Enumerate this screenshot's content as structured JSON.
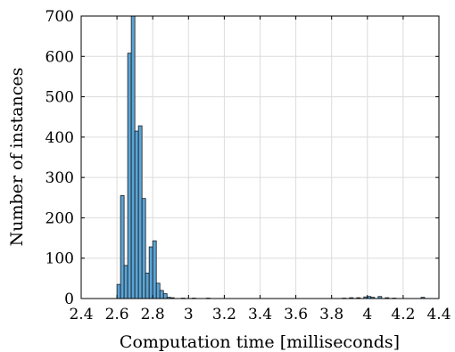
{
  "chart_data": {
    "type": "bar",
    "title": "",
    "xlabel": "Computation time [milliseconds]",
    "ylabel": "Number of instances",
    "xlim": [
      2.4,
      4.4
    ],
    "ylim": [
      0,
      700
    ],
    "grid": true,
    "bin_width": 0.02,
    "x_ticks": [
      "2.4",
      "2.6",
      "2.8",
      "3",
      "3.2",
      "3.4",
      "3.6",
      "3.8",
      "4",
      "4.2",
      "4.4"
    ],
    "y_ticks": [
      "0",
      "100",
      "200",
      "300",
      "400",
      "500",
      "600",
      "700"
    ],
    "bar_color": "#5aa4d6",
    "bins": [
      {
        "x": 2.6,
        "count": 35
      },
      {
        "x": 2.62,
        "count": 255
      },
      {
        "x": 2.64,
        "count": 82
      },
      {
        "x": 2.66,
        "count": 608
      },
      {
        "x": 2.68,
        "count": 700
      },
      {
        "x": 2.7,
        "count": 415
      },
      {
        "x": 2.72,
        "count": 428
      },
      {
        "x": 2.74,
        "count": 248
      },
      {
        "x": 2.76,
        "count": 63
      },
      {
        "x": 2.78,
        "count": 128
      },
      {
        "x": 2.8,
        "count": 143
      },
      {
        "x": 2.82,
        "count": 38
      },
      {
        "x": 2.84,
        "count": 20
      },
      {
        "x": 2.86,
        "count": 12
      },
      {
        "x": 2.88,
        "count": 3
      },
      {
        "x": 2.9,
        "count": 2
      },
      {
        "x": 2.96,
        "count": 1
      },
      {
        "x": 3.02,
        "count": 1
      },
      {
        "x": 3.1,
        "count": 1
      },
      {
        "x": 3.86,
        "count": 1
      },
      {
        "x": 3.9,
        "count": 2
      },
      {
        "x": 3.94,
        "count": 2
      },
      {
        "x": 3.98,
        "count": 4
      },
      {
        "x": 4.0,
        "count": 5
      },
      {
        "x": 4.02,
        "count": 3
      },
      {
        "x": 4.06,
        "count": 5
      },
      {
        "x": 4.1,
        "count": 2
      },
      {
        "x": 4.14,
        "count": 1
      },
      {
        "x": 4.3,
        "count": 3
      }
    ]
  }
}
